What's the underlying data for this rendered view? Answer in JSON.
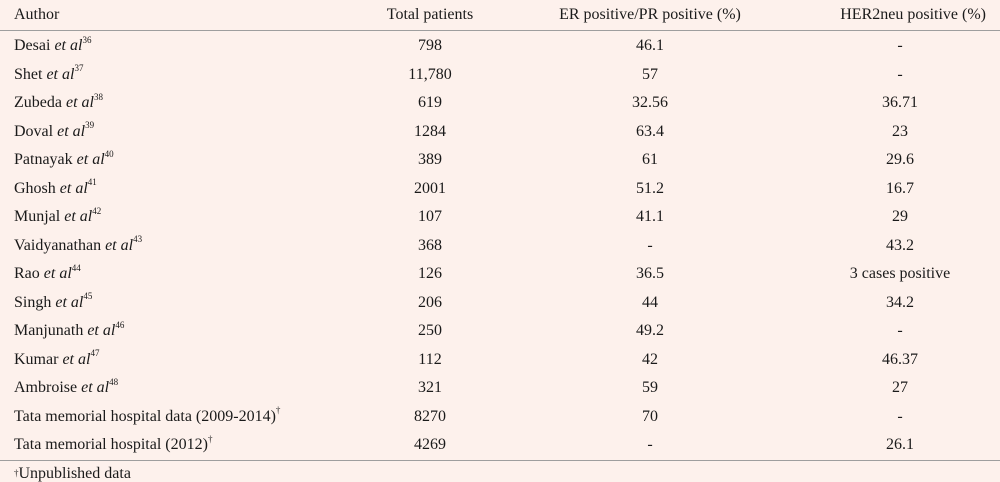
{
  "table": {
    "headers": {
      "author": "Author",
      "total": "Total patients",
      "er": "ER positive/PR positive (%)",
      "her": "HER2neu positive (%)"
    },
    "rows": [
      {
        "name": "Desai",
        "etal": "et al",
        "ref": "36",
        "total": "798",
        "er": "46.1",
        "her": "-"
      },
      {
        "name": "Shet",
        "etal": "et al",
        "ref": "37",
        "total": "11,780",
        "er": "57",
        "her": "-"
      },
      {
        "name": "Zubeda",
        "etal": "et al",
        "ref": "38",
        "total": "619",
        "er": "32.56",
        "her": "36.71"
      },
      {
        "name": "Doval",
        "etal": "et al",
        "ref": "39",
        "total": "1284",
        "er": "63.4",
        "her": "23"
      },
      {
        "name": "Patnayak",
        "etal": "et al",
        "ref": "40",
        "total": "389",
        "er": "61",
        "her": "29.6"
      },
      {
        "name": "Ghosh",
        "etal": "et al",
        "ref": "41",
        "total": "2001",
        "er": "51.2",
        "her": "16.7"
      },
      {
        "name": "Munjal",
        "etal": "et al",
        "ref": "42",
        "total": "107",
        "er": "41.1",
        "her": "29"
      },
      {
        "name": "Vaidyanathan",
        "etal": "et al",
        "ref": "43",
        "total": "368",
        "er": "-",
        "her": "43.2"
      },
      {
        "name": "Rao",
        "etal": "et al",
        "ref": "44",
        "total": "126",
        "er": "36.5",
        "her": "3 cases positive"
      },
      {
        "name": "Singh",
        "etal": "et al",
        "ref": "45",
        "total": "206",
        "er": "44",
        "her": "34.2"
      },
      {
        "name": "Manjunath",
        "etal": "et al",
        "ref": "46",
        "total": "250",
        "er": "49.2",
        "her": "-"
      },
      {
        "name": "Kumar",
        "etal": "et al",
        "ref": "47",
        "total": "112",
        "er": "42",
        "her": "46.37"
      },
      {
        "name": "Ambroise",
        "etal": "et al",
        "ref": "48",
        "total": "321",
        "er": "59",
        "her": "27"
      },
      {
        "name": "Tata memorial hospital data (2009-2014)",
        "etal": "",
        "ref": "†",
        "total": "8270",
        "er": "70",
        "her": "-"
      },
      {
        "name": "Tata memorial hospital (2012)",
        "etal": "",
        "ref": "†",
        "total": "4269",
        "er": "-",
        "her": "26.1"
      }
    ]
  },
  "footnote": {
    "mark": "†",
    "text": "Unpublished data"
  }
}
